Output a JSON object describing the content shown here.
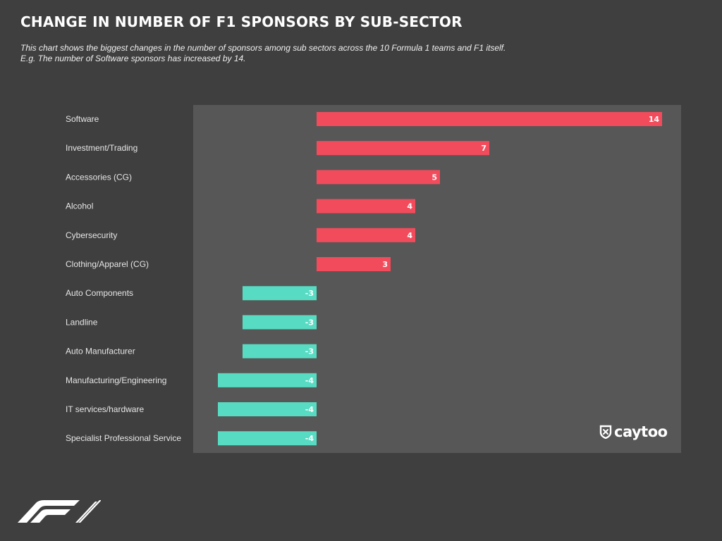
{
  "title": "CHANGE IN NUMBER OF F1 SPONSORS BY SUB-SECTOR",
  "subtitle_lines": [
    "This chart shows the biggest changes in the number of sponsors among sub sectors across the 10 Formula 1 teams and F1 itself.",
    "E.g. The number of Software sponsors has increased by 14."
  ],
  "brand": {
    "name": "caytoo",
    "icon": "caytoo-shield-icon"
  },
  "footer_logo": {
    "icon": "f1-logo-icon"
  },
  "colors": {
    "background": "#3f3f3f",
    "plot_background": "#575757",
    "positive": "#f24c5c",
    "negative": "#57dcc3",
    "text": "#ffffff"
  },
  "chart_data": {
    "type": "bar",
    "orientation": "horizontal",
    "categories": [
      "Software",
      "Investment/Trading",
      "Accessories (CG)",
      "Alcohol",
      "Cybersecurity",
      "Clothing/Apparel (CG)",
      "Auto Components",
      "Landline",
      "Auto Manufacturer",
      "Manufacturing/Engineering",
      "IT services/hardware",
      "Specialist Professional Service"
    ],
    "values": [
      14,
      7,
      5,
      4,
      4,
      3,
      -3,
      -3,
      -3,
      -4,
      -4,
      -4
    ],
    "data_labels": [
      "14",
      "7",
      "5",
      "4",
      "4",
      "3",
      "-3",
      "-3",
      "-3",
      "-4",
      "-4",
      "-4"
    ],
    "xlim": [
      -5,
      15
    ],
    "grid": false,
    "legend": "none"
  }
}
